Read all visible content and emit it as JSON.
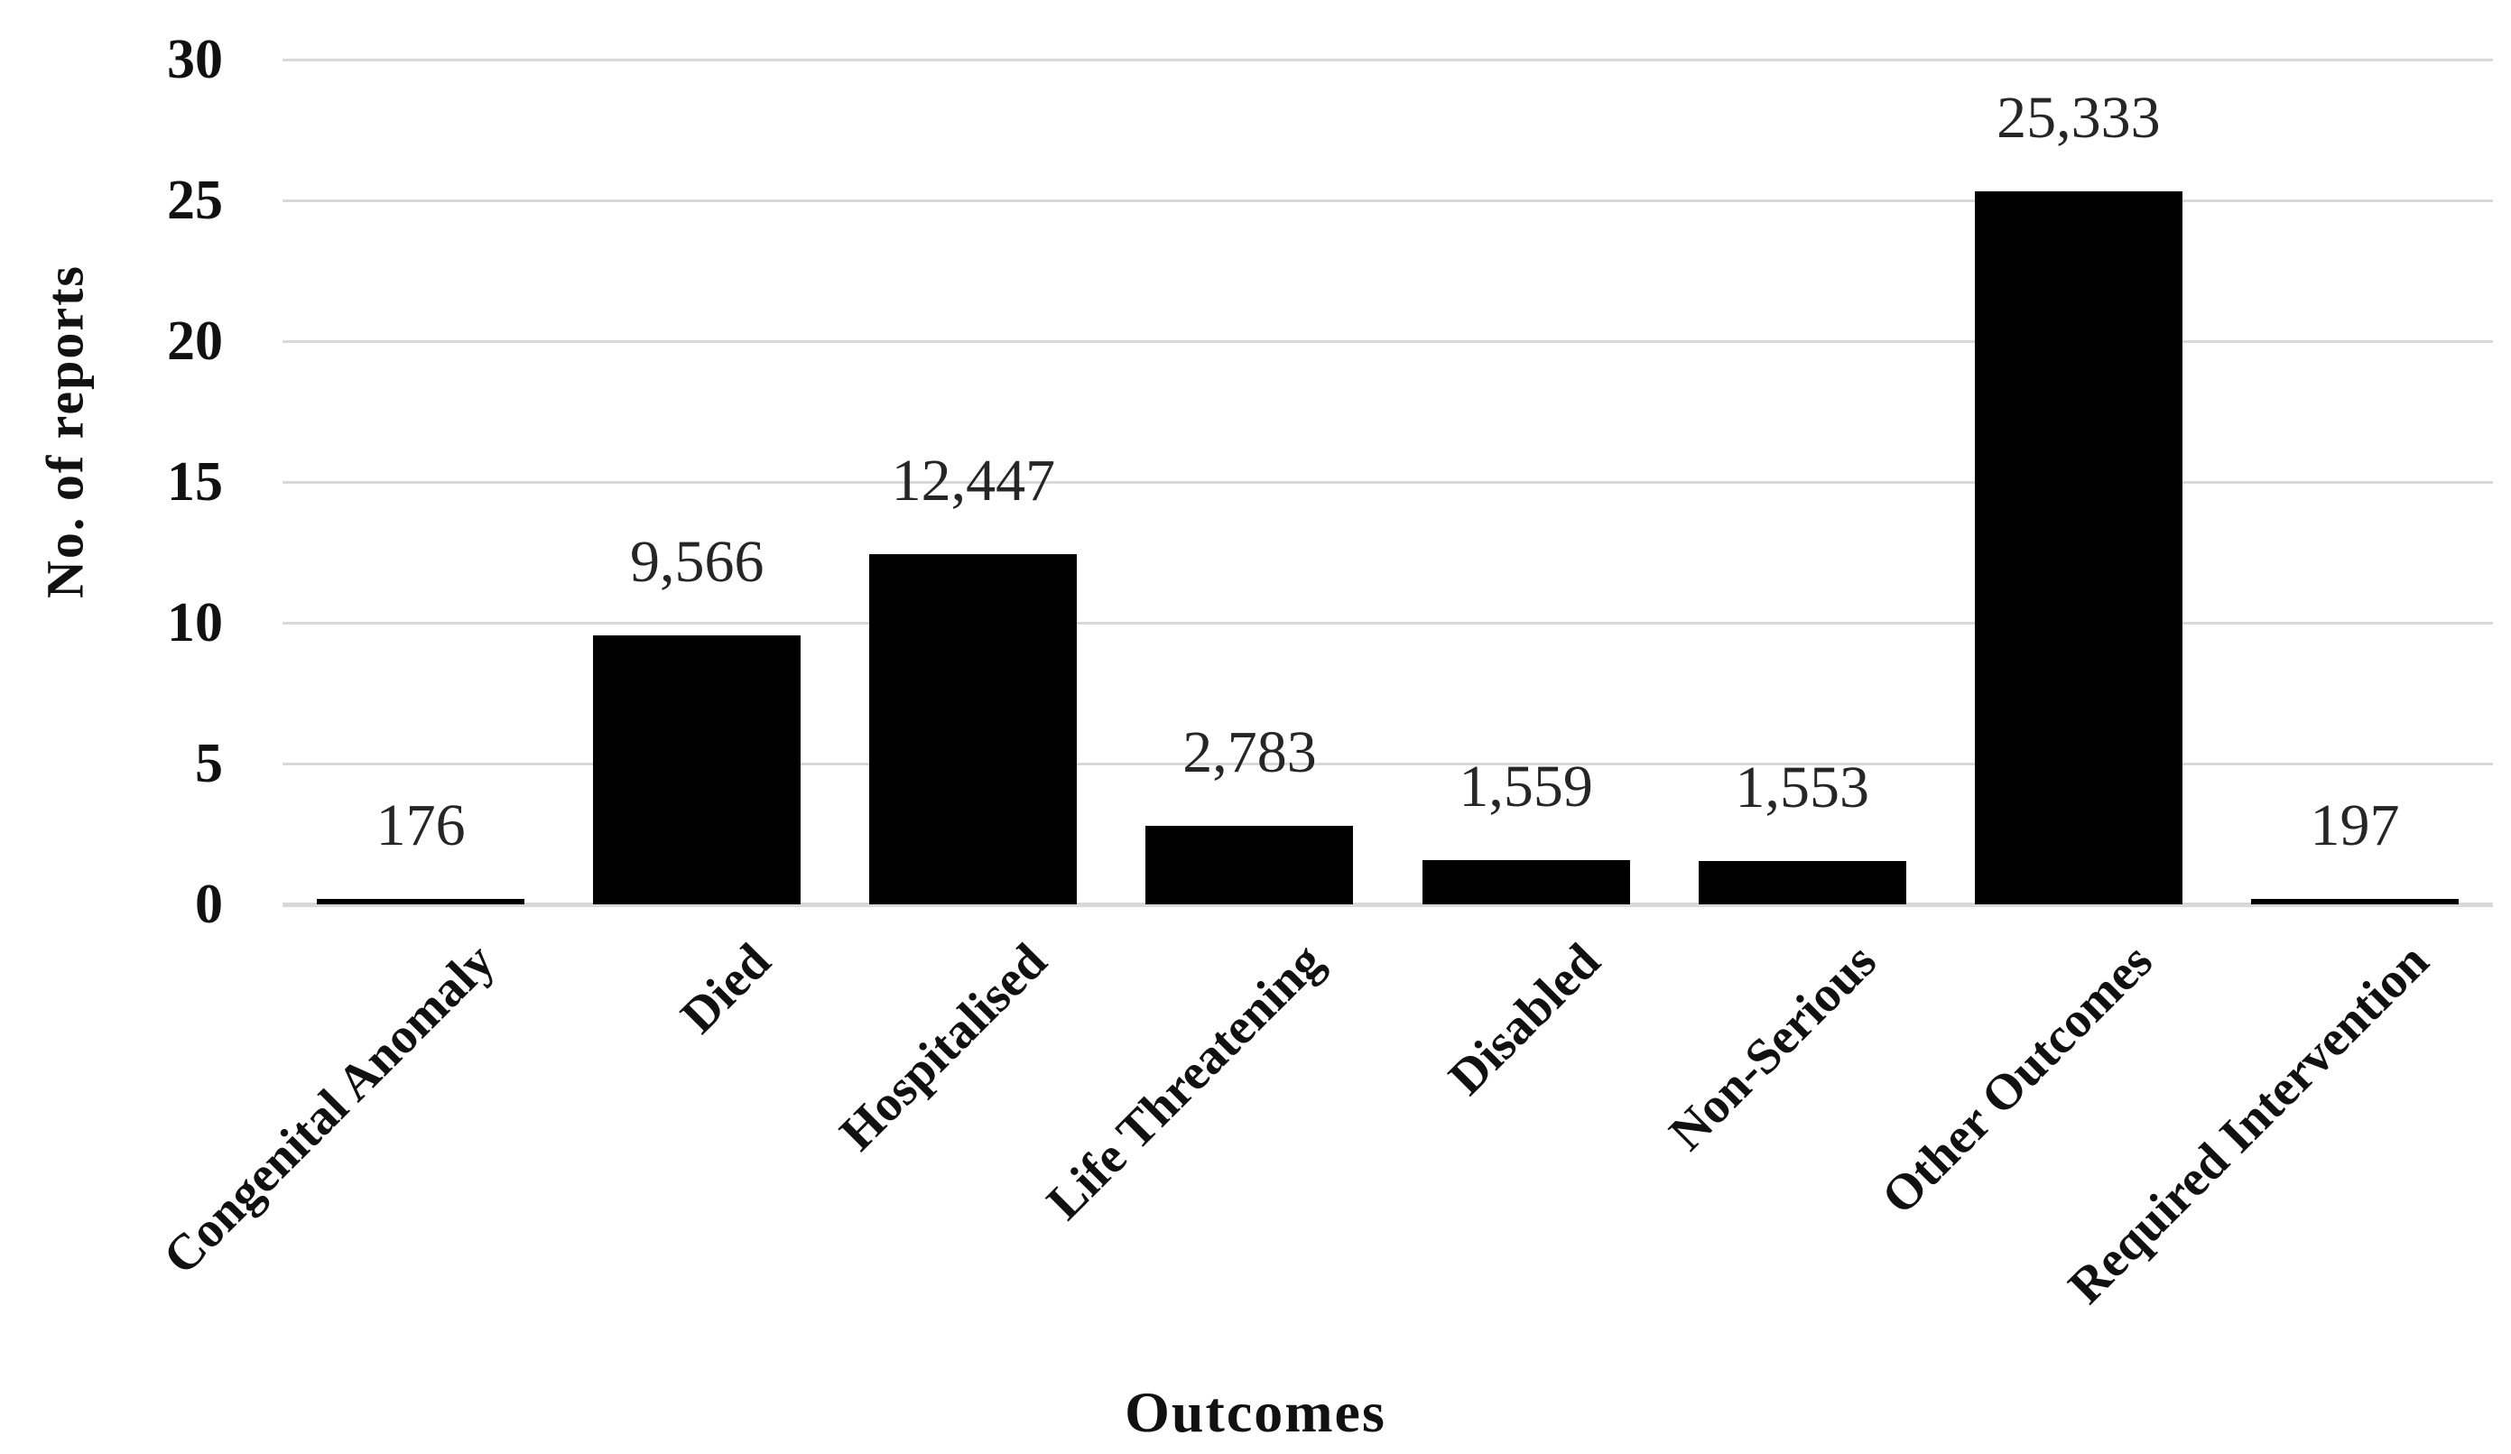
{
  "chart_data": {
    "type": "bar",
    "title": "",
    "xlabel": "Outcomes",
    "ylabel": "No. of reports",
    "categories": [
      "Congenital Anomaly",
      "Died",
      "Hospitalised",
      "Life Threatening",
      "Disabled",
      "Non-Serious",
      "Other Outcomes",
      "Required Intervention"
    ],
    "values": [
      176,
      9566,
      12447,
      2783,
      1559,
      1553,
      25333,
      197
    ],
    "data_labels": [
      "176",
      "9,566",
      "12,447",
      "2,783",
      "1,559",
      "1,553",
      "25,333",
      "197"
    ],
    "series": [
      {
        "name": "No. of reports",
        "values": [
          176,
          9566,
          12447,
          2783,
          1559,
          1553,
          25333,
          197
        ]
      }
    ],
    "ylim": [
      0,
      30
    ],
    "yticks": [
      "0",
      "5",
      "10",
      "15",
      "20",
      "25",
      "30"
    ],
    "value_axis_divisor": 1000,
    "grid": true,
    "legend_position": "none",
    "bar_color": "#000000",
    "gridline_color": "#d9d9d9",
    "text_color": "#111111"
  }
}
